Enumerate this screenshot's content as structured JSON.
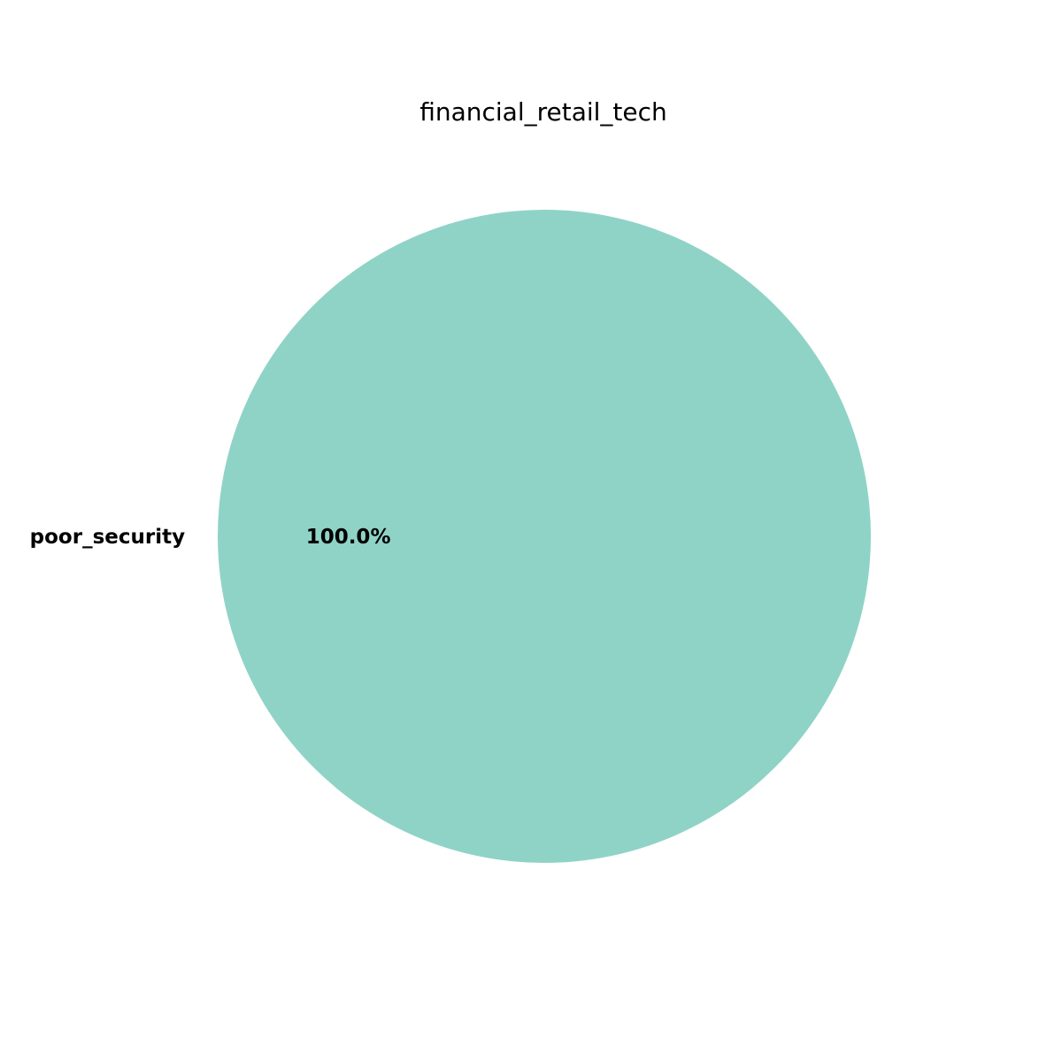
{
  "chart_data": {
    "type": "pie",
    "title": "financial_retail_tech",
    "slices": [
      {
        "label": "poor_security",
        "value": 100.0,
        "pct_label": "100.0%",
        "color": "#8fd3c7"
      }
    ]
  }
}
